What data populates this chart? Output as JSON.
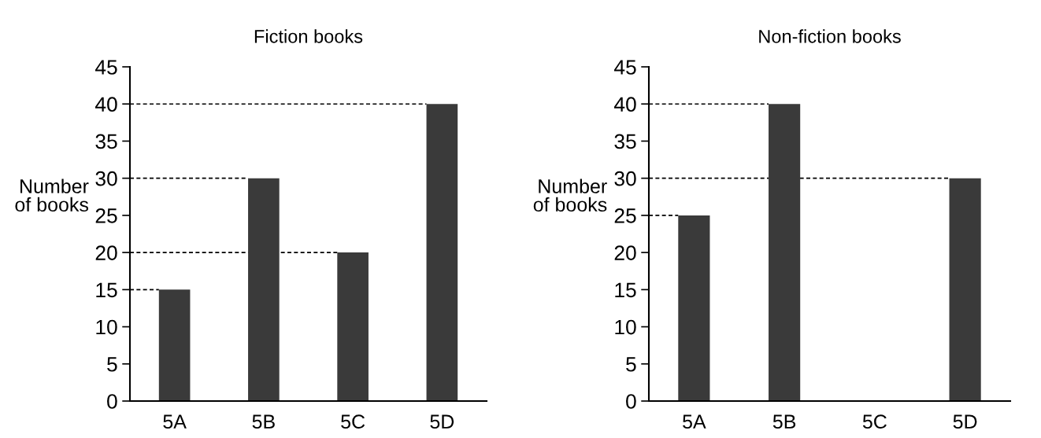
{
  "chart_data": [
    {
      "type": "bar",
      "title": "Fiction books",
      "ylabel": "Number\nof books",
      "categories": [
        "5A",
        "5B",
        "5C",
        "5D"
      ],
      "values": [
        15,
        30,
        20,
        40
      ],
      "color": "#3a3a3a",
      "ylim": [
        0,
        45
      ],
      "yticks": [
        0,
        5,
        10,
        15,
        20,
        25,
        30,
        35,
        40,
        45
      ],
      "ref_lines": [
        {
          "axis": "y",
          "value": 40,
          "color": "#000000",
          "line_style": "dashed"
        },
        {
          "axis": "y",
          "value": 30,
          "color": "#000000",
          "line_style": "dashed"
        },
        {
          "axis": "y",
          "value": 20,
          "color": "#000000",
          "line_style": "dashed"
        },
        {
          "axis": "y",
          "value": 15,
          "color": "#000000",
          "line_style": "dashed"
        }
      ]
    },
    {
      "type": "bar",
      "title": "Non-fiction books",
      "ylabel": "Number\nof books",
      "categories": [
        "5A",
        "5B",
        "5C",
        "5D"
      ],
      "values": [
        25,
        40,
        null,
        30
      ],
      "color": "#3a3a3a",
      "ylim": [
        0,
        45
      ],
      "yticks": [
        0,
        5,
        10,
        15,
        20,
        25,
        30,
        35,
        40,
        45
      ],
      "ref_lines": [
        {
          "axis": "y",
          "value": 40,
          "color": "#000000",
          "line_style": "dashed"
        },
        {
          "axis": "y",
          "value": 30,
          "color": "#000000",
          "line_style": "dashed"
        },
        {
          "axis": "y",
          "value": 25,
          "color": "#000000",
          "line_style": "dashed"
        }
      ]
    }
  ]
}
